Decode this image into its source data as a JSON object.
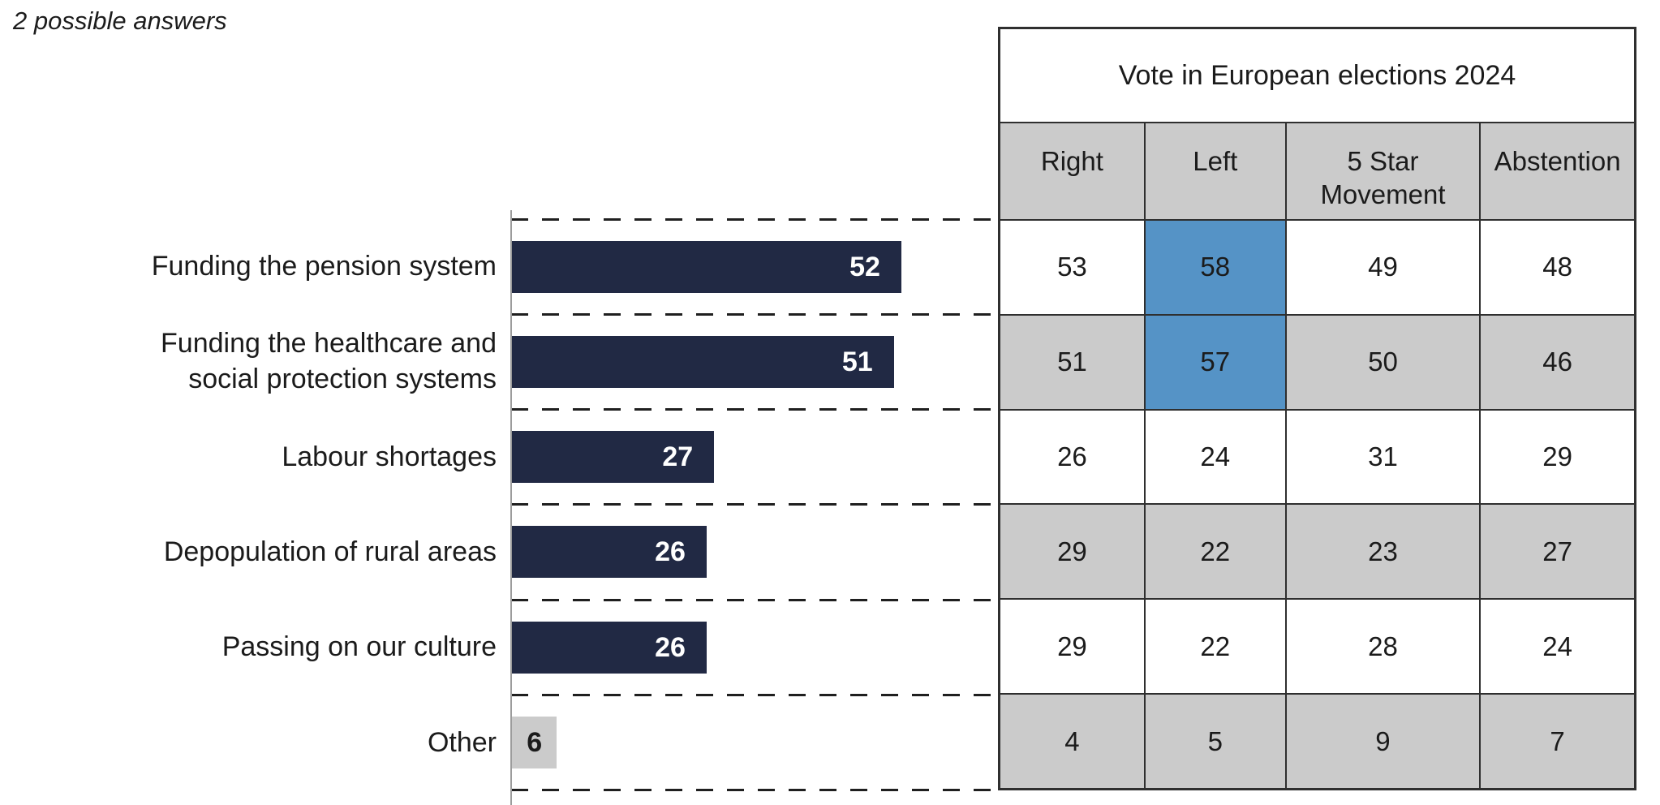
{
  "note": "2 possible answers",
  "colors": {
    "bar_navy": "#212944",
    "bar_other_gray": "#cbcbcb",
    "table_row_gray": "#cbcbcb",
    "table_row_white": "#ffffff",
    "highlight_blue": "#5593c6",
    "border_dark": "#2f2f2f",
    "axis_gray": "#9c9c9c",
    "text_dark": "#1b1b1b",
    "bar_value_white": "#ffffff"
  },
  "chart_data": {
    "type": "bar",
    "orientation": "horizontal",
    "note": "2 possible answers",
    "categories": [
      "Funding the pension system",
      "Funding the healthcare and social protection systems",
      "Labour shortages",
      "Depopulation of rural areas",
      "Passing on our culture",
      "Other"
    ],
    "values": [
      52,
      51,
      27,
      26,
      26,
      6
    ],
    "bar_styles": [
      "navy",
      "navy",
      "navy",
      "navy",
      "navy",
      "gray"
    ],
    "value_labels_inside_bars": true,
    "xlim": [
      0,
      65
    ],
    "gridlines": "dashed horizontal category separators aligned with table rows",
    "legend": "none",
    "table": {
      "title": "Vote in European elections 2024",
      "columns": [
        "Right",
        "Left",
        "5 Star Movement",
        "Abstention"
      ],
      "rows": [
        [
          53,
          58,
          49,
          48
        ],
        [
          51,
          57,
          50,
          46
        ],
        [
          26,
          24,
          31,
          29
        ],
        [
          29,
          22,
          23,
          27
        ],
        [
          29,
          22,
          28,
          24
        ],
        [
          4,
          5,
          9,
          7
        ]
      ],
      "highlighted_cells": [
        [
          0,
          1
        ],
        [
          1,
          1
        ]
      ],
      "row_shading": [
        "white",
        "gray",
        "white",
        "gray",
        "white",
        "gray"
      ]
    }
  }
}
